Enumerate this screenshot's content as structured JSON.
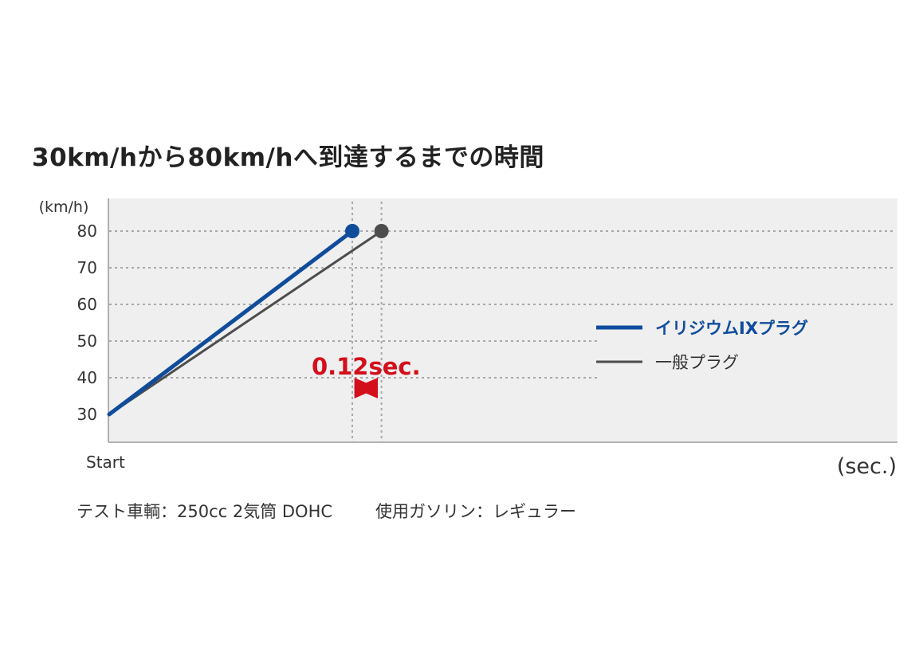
{
  "chart_data": {
    "type": "line",
    "title": "30km/hから80km/hへ到達するまでの時間",
    "ylabel": "(km/h)",
    "xlabel": "(sec.)",
    "x_start_label": "Start",
    "y_ticks": [
      30,
      40,
      50,
      60,
      70,
      80
    ],
    "ylim": [
      30,
      80
    ],
    "grid": true,
    "legend_position": "right",
    "series": [
      {
        "name": "イリジウムIXプラグ",
        "color": "#0f4c9c",
        "points": [
          {
            "x": 0,
            "y": 30
          },
          {
            "x": 1,
            "y": 80
          }
        ]
      },
      {
        "name": "一般プラグ",
        "color": "#4d4d4d",
        "points": [
          {
            "x": 0,
            "y": 30
          },
          {
            "x": 1.12,
            "y": 80
          }
        ]
      }
    ],
    "annotation": {
      "text": "0.12sec.",
      "color": "#d40f1c",
      "from_x": 1,
      "to_x": 1.12
    }
  },
  "footnote": {
    "test_vehicle": "テスト車輌：250cc 2気筒 DOHC",
    "fuel": "使用ガソリン：レギュラー"
  }
}
